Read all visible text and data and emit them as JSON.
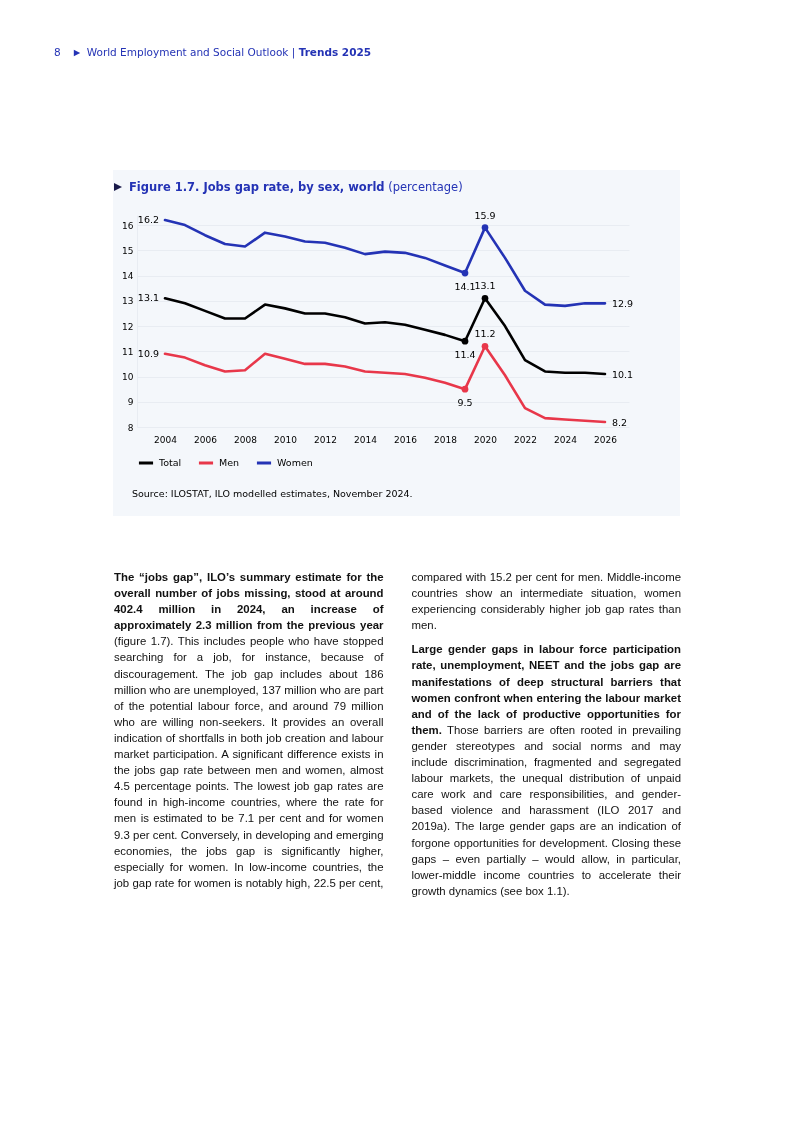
{
  "chart_data": {
    "type": "line",
    "title": "Figure 1.7.  Jobs gap rate, by sex, world",
    "subtitle": "(percentage)",
    "x": [
      2004,
      2005,
      2006,
      2007,
      2008,
      2009,
      2010,
      2011,
      2012,
      2013,
      2014,
      2015,
      2016,
      2017,
      2018,
      2019,
      2020,
      2021,
      2022,
      2023,
      2024,
      2025,
      2026
    ],
    "series": [
      {
        "name": "Total",
        "color": "#000000",
        "values": [
          13.1,
          12.9,
          12.6,
          12.3,
          12.3,
          12.85,
          12.7,
          12.5,
          12.5,
          12.35,
          12.1,
          12.15,
          12.05,
          11.85,
          11.65,
          11.4,
          13.1,
          12.0,
          10.65,
          10.2,
          10.15,
          10.15,
          10.1
        ],
        "value_labels": [
          "13.1",
          null,
          null,
          null,
          null,
          null,
          null,
          null,
          null,
          null,
          null,
          null,
          null,
          null,
          null,
          "11.4",
          "13.1",
          null,
          null,
          null,
          null,
          null,
          "10.1"
        ]
      },
      {
        "name": "Men",
        "color": "#e8374a",
        "values": [
          10.9,
          10.75,
          10.45,
          10.2,
          10.25,
          10.9,
          10.7,
          10.5,
          10.5,
          10.4,
          10.2,
          10.15,
          10.1,
          9.95,
          9.75,
          9.5,
          11.2,
          10.05,
          8.75,
          8.35,
          8.3,
          8.25,
          8.2
        ],
        "value_labels": [
          "10.9",
          null,
          null,
          null,
          null,
          null,
          null,
          null,
          null,
          null,
          null,
          null,
          null,
          null,
          null,
          "9.5",
          "11.2",
          null,
          null,
          null,
          null,
          null,
          "8.2"
        ]
      },
      {
        "name": "Women",
        "color": "#2433b5",
        "values": [
          16.2,
          16.0,
          15.6,
          15.25,
          15.15,
          15.7,
          15.55,
          15.35,
          15.3,
          15.1,
          14.85,
          14.95,
          14.9,
          14.7,
          14.4,
          14.1,
          15.9,
          14.7,
          13.4,
          12.85,
          12.8,
          12.9,
          12.9
        ],
        "value_labels": [
          "16.2",
          null,
          null,
          null,
          null,
          null,
          null,
          null,
          null,
          null,
          null,
          null,
          null,
          null,
          null,
          "14.1",
          "15.9",
          null,
          null,
          null,
          null,
          null,
          "12.9"
        ]
      },
      {
        "type": "scatter",
        "color": "#000000",
        "values": [
          null,
          null,
          null,
          null,
          null,
          null,
          null,
          null,
          null,
          null,
          null,
          null,
          null,
          null,
          null,
          11.4,
          13.1,
          null,
          null,
          null,
          null,
          null,
          null
        ]
      },
      {
        "type": "scatter",
        "color": "#e8374a",
        "values": [
          null,
          null,
          null,
          null,
          null,
          null,
          null,
          null,
          null,
          null,
          null,
          null,
          null,
          null,
          null,
          9.5,
          11.2,
          null,
          null,
          null,
          null,
          null,
          null
        ]
      },
      {
        "type": "scatter",
        "color": "#2433b5",
        "values": [
          null,
          null,
          null,
          null,
          null,
          null,
          null,
          null,
          null,
          null,
          null,
          null,
          null,
          null,
          null,
          14.1,
          15.9,
          null,
          null,
          null,
          null,
          null,
          null
        ]
      }
    ],
    "xlim": [
      2002.6,
      2027.2
    ],
    "xticks": [
      2004,
      2006,
      2008,
      2010,
      2012,
      2014,
      2016,
      2018,
      2020,
      2022,
      2024,
      2026
    ],
    "ylim": [
      8,
      16.4
    ],
    "yticks": [
      8,
      9,
      10,
      11,
      12,
      13,
      14,
      15,
      16
    ],
    "grid": "y",
    "legend": "bottom",
    "annotations": [
      "8",
      "World Employment and Social Outlook |",
      "Trends 2025",
      "Source: ILOSTAT, ILO modelled estimates, November 2024.",
      "The “jobs gap”, ILO’s summary estimate for the overall number of jobs missing, stood at around 402.4 million in 2024, an increase of approximately 2.3 million from the previous year",
      " (figure 1.7). This includes people who have stopped searching for a job, for instance, because of discouragement. The job gap includes about 186 million who are unemployed, 137 million who are part of the potential labour force, and around 79 million who are willing non-seekers. It provides an overall indication of shortfalls in both job creation and labour market participation. A significant difference exists in the jobs gap rate between men and women, almost 4.5 percentage points. The lowest job gap rates are found in high-income countries, where the rate for men is estimated to be 7.1 per cent and for women 9.3 per cent. Conversely, in developing and emerging economies, the jobs gap is significantly higher, especially for women. In low-income countries, the job gap rate for women is notably high, 22.5 per cent, compared with 15.2 per cent for men. Middle-income countries show an intermediate situation, women experiencing considerably higher job gap rates than men.",
      "Large gender gaps in labour force participation rate, unemployment, NEET and the jobs gap are manifestations of deep structural barriers that women confront when entering the labour market and of the lack of productive opportunities for them.",
      " Those barriers are often rooted in prevailing gender stereotypes and social norms and may include discrimination, fragmented and segregated labour markets, the unequal distribution of unpaid care work and care responsibilities, and gender-based violence and harassment (ILO 2017 and 2019a). The large gender gaps are an indication of forgone opportunities for development. Closing these gaps – even partially – would allow, in particular, lower-middle income countries to accelerate their growth dynamics (see box 1.1)."
    ]
  }
}
